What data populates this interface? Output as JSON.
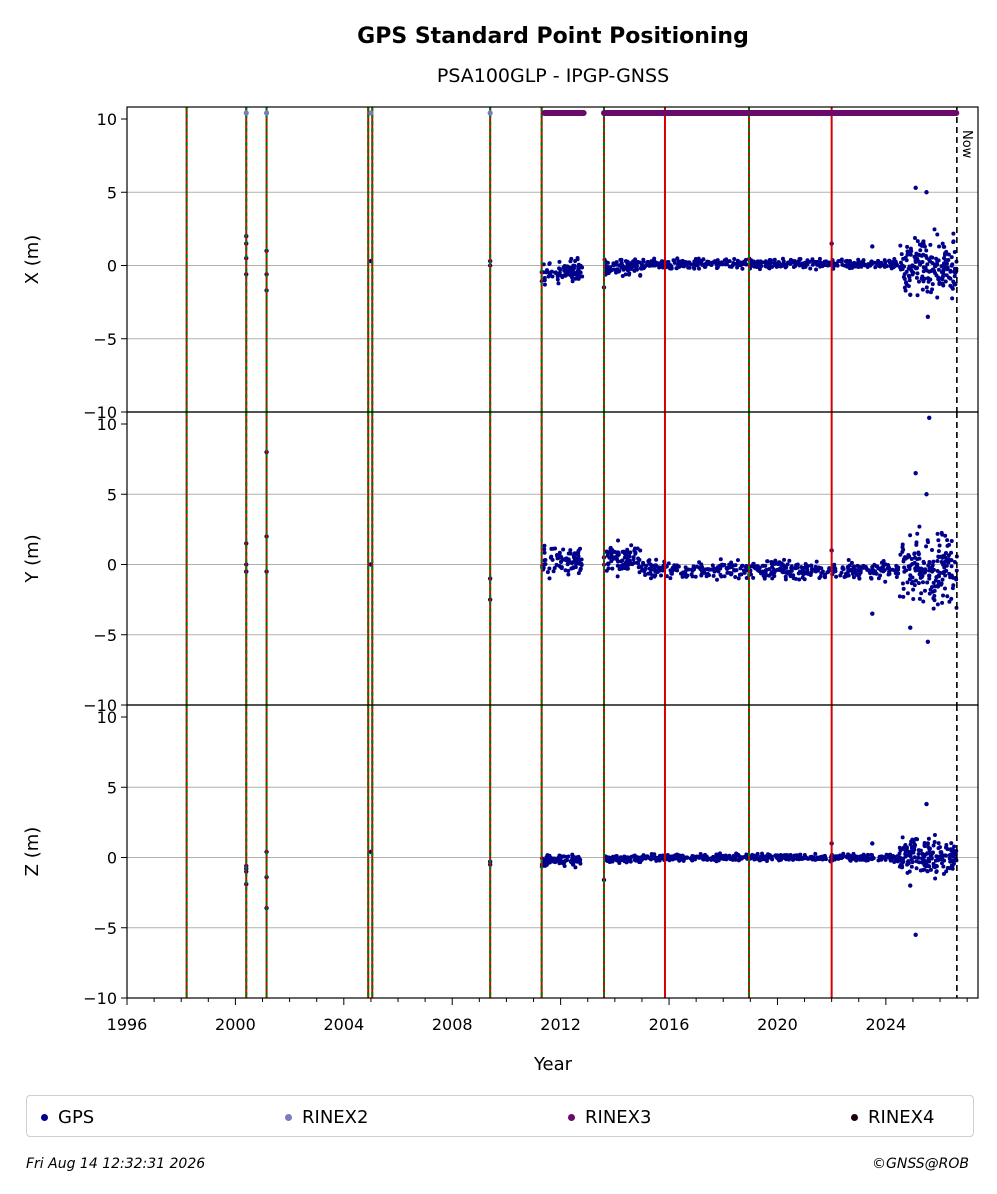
{
  "chart_data": {
    "type": "scatter",
    "title": "GPS Standard Point Positioning",
    "subtitle": "PSA100GLP - IPGP-GNSS",
    "xlabel": "Year",
    "xlim": [
      1996,
      2027.4
    ],
    "xticks": [
      "1996",
      "2000",
      "2004",
      "2008",
      "2012",
      "2016",
      "2020",
      "2024"
    ],
    "now_label": "Now",
    "now_x": 2026.62,
    "panels": [
      {
        "ylabel": "X (m)",
        "ylim": [
          -10,
          10
        ],
        "yticks": [
          "−10",
          "−5",
          "0",
          "5",
          "10"
        ]
      },
      {
        "ylabel": "Y (m)",
        "ylim": [
          -10,
          10
        ],
        "yticks": [
          "−10",
          "−5",
          "0",
          "5",
          "10"
        ]
      },
      {
        "ylabel": "Z (m)",
        "ylim": [
          -10,
          10
        ],
        "yticks": [
          "−10",
          "−5",
          "0",
          "5",
          "10"
        ]
      }
    ],
    "event_lines_red": [
      1998.2,
      2000.4,
      2001.15,
      2004.9,
      2005.05,
      2009.4,
      2011.3,
      2013.6,
      2015.85,
      2018.95,
      2022.0
    ],
    "event_lines_green": [
      1998.2,
      2000.4,
      2001.15,
      2004.9,
      2005.05,
      2009.4,
      2011.3,
      2013.6,
      2018.95
    ],
    "series": [
      {
        "name": "GPS",
        "color": "#00008b",
        "sparse_points": [
          {
            "x": 2000.4,
            "X": 2.0,
            "Y": 1.5,
            "Z": -0.6
          },
          {
            "x": 2000.4,
            "X": 1.5,
            "Y": 0.0,
            "Z": -1.0
          },
          {
            "x": 2000.4,
            "X": 0.5,
            "Y": -0.5,
            "Z": -1.9
          },
          {
            "x": 2000.4,
            "X": -0.6,
            "Y": -0.5,
            "Z": -0.8
          },
          {
            "x": 2001.15,
            "X": 1.0,
            "Y": 8.0,
            "Z": 0.4
          },
          {
            "x": 2001.15,
            "X": -0.6,
            "Y": 2.0,
            "Z": -3.6
          },
          {
            "x": 2001.15,
            "X": -1.7,
            "Y": -0.5,
            "Z": -1.4
          },
          {
            "x": 2005.0,
            "X": 0.3,
            "Y": 0.0,
            "Z": 0.4
          },
          {
            "x": 2009.4,
            "X": 0.3,
            "Y": -1.0,
            "Z": -0.3
          },
          {
            "x": 2009.4,
            "X": 0.0,
            "Y": -2.5,
            "Z": -0.5
          },
          {
            "x": 2013.6,
            "X": -1.5,
            "Y": 0.5,
            "Z": -1.6
          },
          {
            "x": 2022.0,
            "X": 1.5,
            "Y": 1.0,
            "Z": 1.0
          },
          {
            "x": 2023.5,
            "X": 1.3,
            "Y": -3.5,
            "Z": 1.0
          },
          {
            "x": 2025.1,
            "X": 5.3,
            "Y": 6.5,
            "Z": -5.5
          },
          {
            "x": 2025.5,
            "X": 5.0,
            "Y": 5.0,
            "Z": 3.8
          },
          {
            "x": 2025.55,
            "X": -3.5,
            "Y": -5.5,
            "Z": 1.0
          },
          {
            "x": 2025.6,
            "X": -10.4,
            "Y": -0.8,
            "Z": 0.3
          },
          {
            "x": 2024.9,
            "X": -2.0,
            "Y": -4.5,
            "Z": -2.0
          }
        ]
      },
      {
        "name": "RINEX2",
        "color": "#7b7bbf"
      },
      {
        "name": "RINEX3",
        "color": "#6a0a6a"
      },
      {
        "name": "RINEX4",
        "color": "#1a0010"
      }
    ],
    "legend_position": "bottom",
    "grid": true
  },
  "legend": {
    "items": [
      "GPS",
      "RINEX2",
      "RINEX3",
      "RINEX4"
    ]
  },
  "footer": {
    "timestamp": "Fri Aug 14 12:32:31 2026",
    "copyright": "©GNSS@ROB"
  }
}
